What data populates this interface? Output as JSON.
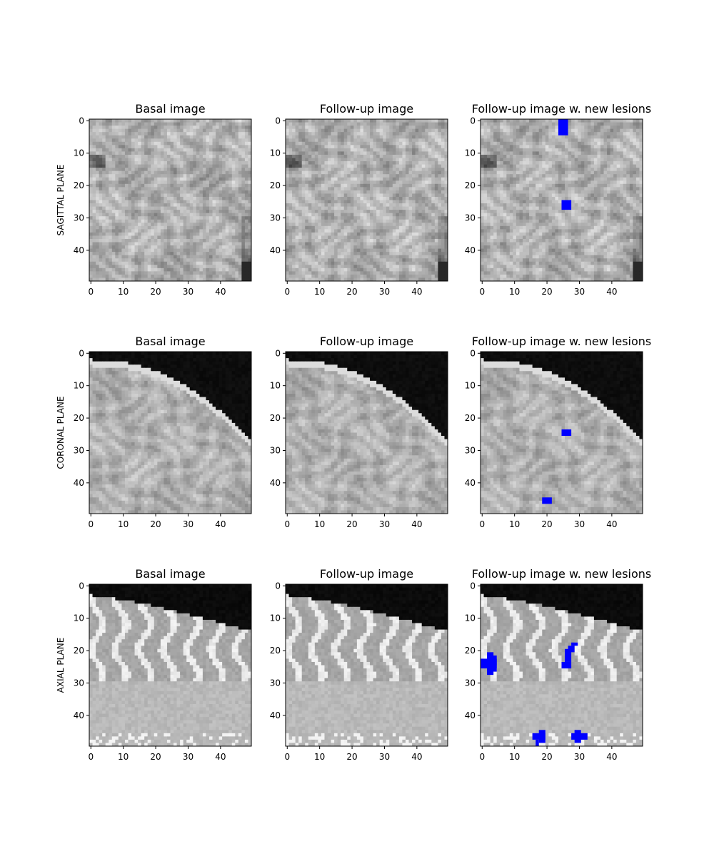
{
  "figure": {
    "column_titles": [
      "Basal image",
      "Follow-up image",
      "Follow-up image w. new lesions"
    ],
    "row_labels": [
      "SAGITTAL PLANE",
      "CORONAL PLANE",
      "AXIAL PLANE"
    ],
    "tick_values": [
      0,
      10,
      20,
      30,
      40
    ],
    "image_size": [
      50,
      50
    ],
    "lesion_color": "#0000ff",
    "frame_color": "#000000"
  },
  "panels": [
    {
      "row": 0,
      "col": 0,
      "title": "Basal image",
      "kind": "sagittal",
      "seed": 11,
      "lesions": []
    },
    {
      "row": 0,
      "col": 1,
      "title": "Follow-up image",
      "kind": "sagittal",
      "seed": 12,
      "lesions": []
    },
    {
      "row": 0,
      "col": 2,
      "title": "Follow-up image w. new lesions",
      "kind": "sagittal",
      "seed": 12,
      "lesions": [
        {
          "x": 24,
          "y": 0,
          "w": 3,
          "h": 5
        },
        {
          "x": 25,
          "y": 25,
          "w": 3,
          "h": 3
        }
      ]
    },
    {
      "row": 1,
      "col": 0,
      "title": "Basal image",
      "kind": "coronal",
      "seed": 21,
      "lesions": []
    },
    {
      "row": 1,
      "col": 1,
      "title": "Follow-up image",
      "kind": "coronal",
      "seed": 22,
      "lesions": []
    },
    {
      "row": 1,
      "col": 2,
      "title": "Follow-up image w. new lesions",
      "kind": "coronal",
      "seed": 22,
      "lesions": [
        {
          "x": 25,
          "y": 24,
          "w": 3,
          "h": 2
        },
        {
          "x": 19,
          "y": 45,
          "w": 3,
          "h": 2
        }
      ]
    },
    {
      "row": 2,
      "col": 0,
      "title": "Basal image",
      "kind": "axial",
      "seed": 31,
      "lesions": []
    },
    {
      "row": 2,
      "col": 1,
      "title": "Follow-up image",
      "kind": "axial",
      "seed": 32,
      "lesions": []
    },
    {
      "row": 2,
      "col": 2,
      "title": "Follow-up image w. new lesions",
      "kind": "axial",
      "seed": 32,
      "lesions": [
        {
          "x": 2,
          "y": 21,
          "w": 2,
          "h": 7
        },
        {
          "x": 0,
          "y": 23,
          "w": 5,
          "h": 3
        },
        {
          "x": 3,
          "y": 22,
          "w": 2,
          "h": 5
        },
        {
          "x": 25,
          "y": 24,
          "w": 3,
          "h": 2
        },
        {
          "x": 26,
          "y": 20,
          "w": 2,
          "h": 4
        },
        {
          "x": 27,
          "y": 19,
          "w": 2,
          "h": 2
        },
        {
          "x": 28,
          "y": 18,
          "w": 2,
          "h": 1
        },
        {
          "x": 16,
          "y": 46,
          "w": 4,
          "h": 2
        },
        {
          "x": 18,
          "y": 45,
          "w": 2,
          "h": 4
        },
        {
          "x": 17,
          "y": 48,
          "w": 1,
          "h": 2
        },
        {
          "x": 28,
          "y": 46,
          "w": 5,
          "h": 2
        },
        {
          "x": 29,
          "y": 45,
          "w": 2,
          "h": 4
        }
      ]
    }
  ]
}
